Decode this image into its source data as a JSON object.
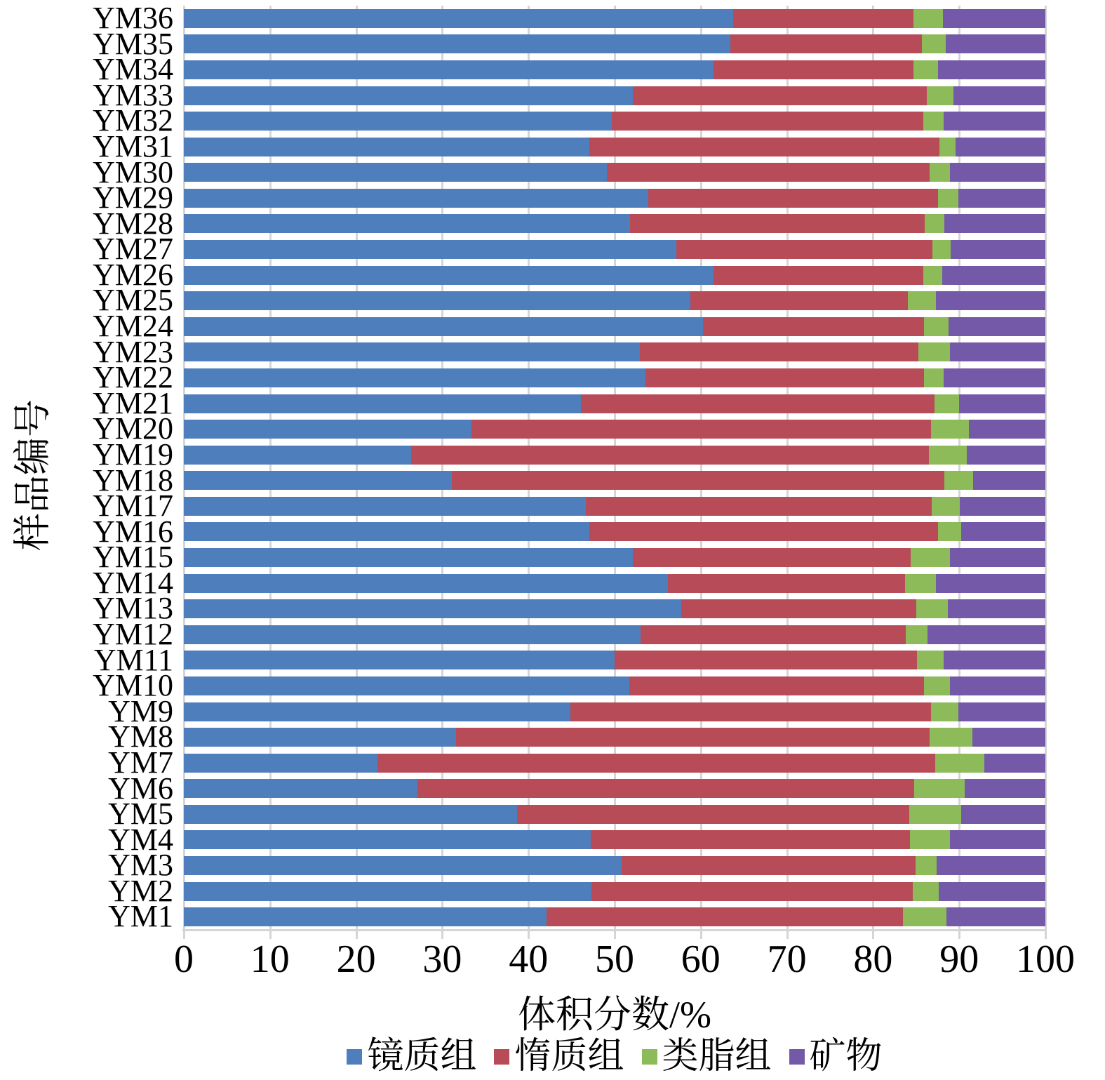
{
  "chart_data": {
    "type": "bar",
    "orientation": "horizontal",
    "stacked": true,
    "title": "",
    "xlabel": "体积分数/%",
    "ylabel": "样品编号",
    "xlim": [
      0,
      100
    ],
    "xticks": [
      0,
      10,
      20,
      30,
      40,
      50,
      60,
      70,
      80,
      90,
      100
    ],
    "grid": true,
    "legend_position": "bottom",
    "categories_top_to_bottom": [
      "YM36",
      "YM35",
      "YM34",
      "YM33",
      "YM32",
      "YM31",
      "YM30",
      "YM29",
      "YM28",
      "YM27",
      "YM26",
      "YM25",
      "YM24",
      "YM23",
      "YM22",
      "YM21",
      "YM20",
      "YM19",
      "YM18",
      "YM17",
      "YM16",
      "YM15",
      "YM14",
      "YM13",
      "YM12",
      "YM11",
      "YM10",
      "YM9",
      "YM8",
      "YM7",
      "YM6",
      "YM5",
      "YM4",
      "YM3",
      "YM2",
      "YM1"
    ],
    "series": [
      {
        "name": "镜质组",
        "color": "#4F7EBC",
        "values": [
          63.8,
          63.4,
          61.5,
          52.1,
          49.7,
          47.1,
          49.1,
          53.9,
          51.8,
          57.2,
          61.5,
          58.8,
          60.3,
          52.9,
          53.6,
          46.1,
          33.4,
          26.4,
          31.1,
          46.7,
          47.1,
          52.1,
          56.2,
          57.7,
          53.0,
          50.0,
          51.7,
          44.9,
          31.6,
          22.5,
          27.1,
          38.7,
          47.2,
          50.8,
          47.3,
          42.1
        ]
      },
      {
        "name": "惰质组",
        "color": "#B74B57",
        "values": [
          20.9,
          22.3,
          23.2,
          34.1,
          36.1,
          40.6,
          37.5,
          33.6,
          34.2,
          29.7,
          24.3,
          25.2,
          25.6,
          32.4,
          32.3,
          41.0,
          53.3,
          60.1,
          57.2,
          40.1,
          40.4,
          32.3,
          27.5,
          27.3,
          30.8,
          35.1,
          34.2,
          41.8,
          55.0,
          64.7,
          57.7,
          45.5,
          37.1,
          34.1,
          37.3,
          41.4
        ]
      },
      {
        "name": "类脂组",
        "color": "#8EBB59",
        "values": [
          3.4,
          2.7,
          2.8,
          3.1,
          2.4,
          1.9,
          2.3,
          2.4,
          2.3,
          2.1,
          2.2,
          3.3,
          2.9,
          3.6,
          2.3,
          2.9,
          4.4,
          4.4,
          3.3,
          3.3,
          2.7,
          4.5,
          3.6,
          3.7,
          2.5,
          3.1,
          3.0,
          3.2,
          4.9,
          5.7,
          5.8,
          6.0,
          4.6,
          2.5,
          3.0,
          5.0
        ]
      },
      {
        "name": "矿物",
        "color": "#7459A8",
        "values": [
          11.9,
          11.6,
          12.5,
          10.7,
          11.8,
          10.4,
          11.1,
          10.1,
          11.7,
          11.0,
          12.0,
          12.7,
          11.2,
          11.1,
          11.8,
          10.0,
          8.9,
          9.1,
          8.4,
          9.9,
          9.8,
          11.1,
          12.7,
          11.3,
          13.7,
          11.8,
          11.1,
          10.1,
          8.5,
          7.1,
          9.4,
          9.8,
          11.1,
          12.6,
          12.4,
          11.5
        ]
      }
    ]
  }
}
